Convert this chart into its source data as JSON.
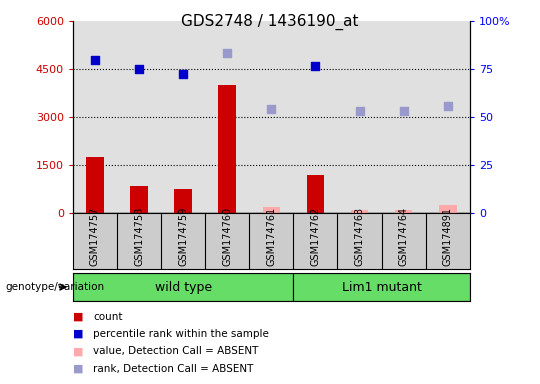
{
  "title": "GDS2748 / 1436190_at",
  "samples": [
    "GSM174757",
    "GSM174758",
    "GSM174759",
    "GSM174760",
    "GSM174761",
    "GSM174762",
    "GSM174763",
    "GSM174764",
    "GSM174891"
  ],
  "count_present": [
    1750,
    850,
    750,
    4000,
    null,
    1200,
    null,
    null,
    null
  ],
  "count_absent": [
    null,
    null,
    null,
    null,
    200,
    null,
    100,
    110,
    240
  ],
  "rank_present_left": [
    4800,
    4500,
    4350,
    null,
    null,
    4600,
    null,
    null,
    null
  ],
  "rank_absent_left": [
    null,
    null,
    null,
    5000,
    3250,
    null,
    3200,
    3200,
    3350
  ],
  "ylim_left": [
    0,
    6000
  ],
  "ylim_right": [
    0,
    100
  ],
  "yticks_left": [
    0,
    1500,
    3000,
    4500,
    6000
  ],
  "yticks_right": [
    0,
    25,
    50,
    75,
    100
  ],
  "ytick_labels_left": [
    "0",
    "1500",
    "3000",
    "4500",
    "6000"
  ],
  "ytick_labels_right": [
    "0",
    "25",
    "50",
    "75",
    "100%"
  ],
  "hgrid_vals": [
    1500,
    3000,
    4500
  ],
  "group1_label": "wild type",
  "group2_label": "Lim1 mutant",
  "group1_indices": [
    0,
    1,
    2,
    3,
    4
  ],
  "group2_indices": [
    5,
    6,
    7,
    8
  ],
  "bar_color_present": "#cc0000",
  "bar_color_absent": "#ffaaaa",
  "rank_color_present": "#0000cc",
  "rank_color_absent": "#9999cc",
  "plot_bg": "#e0e0e0",
  "xlabels_bg": "#cccccc",
  "group_bg": "#66dd66",
  "legend_items": [
    "count",
    "percentile rank within the sample",
    "value, Detection Call = ABSENT",
    "rank, Detection Call = ABSENT"
  ],
  "legend_colors": [
    "#cc0000",
    "#0000cc",
    "#ffaaaa",
    "#9999cc"
  ]
}
